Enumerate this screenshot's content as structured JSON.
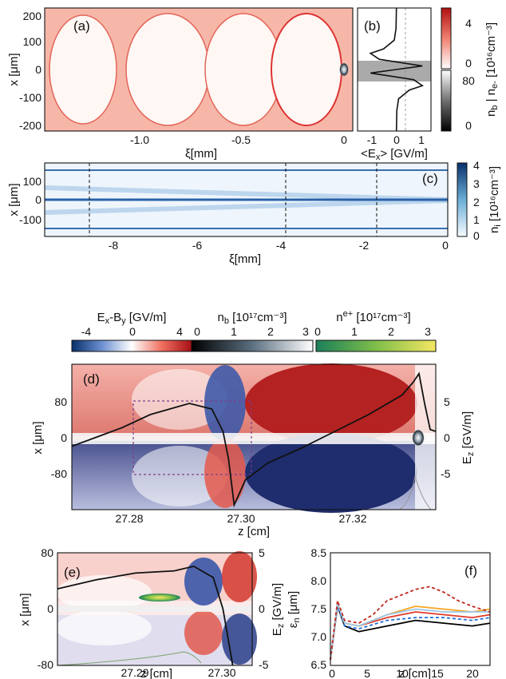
{
  "panel_a": {
    "label": "(a)",
    "xlabel": "ξ[mm]",
    "ylabel": "x [μm]",
    "xticks": [
      "-1.0",
      "-0.5",
      "0"
    ],
    "yticks": [
      "200",
      "100",
      "0",
      "-100",
      "-200"
    ]
  },
  "panel_b": {
    "label": "(b)",
    "xlabel": "<E",
    "xlabel_sub": "x",
    "xlabel_end": "> [GV/m]",
    "xticks": [
      "-1",
      "0",
      "1"
    ]
  },
  "colorbar_ab": {
    "label": "n",
    "label_sub1": "b",
    "label_mid": " | n",
    "label_sub2": "e-",
    "label_end": " [10¹⁶cm⁻³]",
    "upper_ticks": [
      "4",
      "0"
    ],
    "lower_ticks": [
      "80",
      "0"
    ]
  },
  "panel_c": {
    "label": "(c)",
    "xlabel": "ξ[mm]",
    "ylabel": "x [μm]",
    "xticks": [
      "-8",
      "-6",
      "-4",
      "-2",
      "0"
    ],
    "yticks": [
      "100",
      "0",
      "-100"
    ]
  },
  "colorbar_c": {
    "label": "n",
    "label_sub": "i",
    "label_end": " [10¹⁶cm⁻³]",
    "ticks": [
      "4",
      "3",
      "2",
      "1",
      "0"
    ]
  },
  "top_colorbars": [
    {
      "title": "E",
      "title_sub1": "x",
      "title_mid": "-B",
      "title_sub2": "y",
      "title_end": " [GV/m]",
      "ticks": [
        "-4",
        "0",
        "4"
      ]
    },
    {
      "title": "n",
      "title_sub1": "b",
      "title_end": " [10¹⁷cm⁻³]",
      "ticks": [
        "0",
        "1",
        "2",
        "3"
      ]
    },
    {
      "title": "n",
      "title_sub1": "e+",
      "title_end": " [10¹⁷cm⁻³]",
      "ticks": [
        "0",
        "1",
        "2",
        "3"
      ]
    }
  ],
  "panel_d": {
    "label": "(d)",
    "xlabel": "z [cm]",
    "ylabel": "x [μm]",
    "ylabel_right": "E",
    "ylabel_right_sub": "z",
    "ylabel_right_end": " [GV/m]",
    "xticks": [
      "27.28",
      "27.30",
      "27.32"
    ],
    "yticks": [
      "80",
      "0",
      "-80"
    ],
    "yticks_right": [
      "5",
      "0",
      "-5"
    ]
  },
  "panel_e": {
    "label": "(e)",
    "xlabel": "z [cm]",
    "ylabel": "x [μm]",
    "ylabel_right": "E",
    "ylabel_right_sub": "z",
    "ylabel_right_end": " [GV/m]",
    "xticks": [
      "27.29",
      "27.30"
    ],
    "yticks": [
      "80",
      "0",
      "-80"
    ],
    "yticks_right": [
      "5",
      "0",
      "-5"
    ]
  },
  "panel_f": {
    "label": "(f)",
    "xlabel": "z [cm]",
    "ylabel": "ε",
    "ylabel_sub": "n",
    "ylabel_end": " [μm]",
    "xticks": [
      "0",
      "5",
      "10",
      "15",
      "20"
    ],
    "yticks": [
      "8.5",
      "8.0",
      "7.5",
      "7.0",
      "6.5"
    ]
  },
  "chart_data": [
    {
      "type": "line",
      "panel": "b",
      "x_axis": "<Ex> [GV/m]",
      "y_axis": "x [μm]",
      "xlim": [
        -1.8,
        1.6
      ],
      "ylim": [
        -210,
        210
      ],
      "points": [
        [
          0,
          -210
        ],
        [
          0.02,
          -140
        ],
        [
          0.1,
          -100
        ],
        [
          0.6,
          -70
        ],
        [
          1.2,
          -55
        ],
        [
          0.8,
          -35
        ],
        [
          -1.2,
          -12
        ],
        [
          0,
          0
        ],
        [
          1.2,
          12
        ],
        [
          -0.8,
          35
        ],
        [
          -1.2,
          55
        ],
        [
          -0.6,
          70
        ],
        [
          -0.1,
          100
        ],
        [
          -0.02,
          140
        ],
        [
          0,
          210
        ]
      ]
    },
    {
      "type": "line",
      "panel": "d",
      "x_axis": "z [cm]",
      "y_axis": "Ez [GV/m]",
      "xlim": [
        27.271,
        27.336
      ],
      "ylim": [
        -8.4,
        7.2
      ],
      "points": [
        [
          27.271,
          -1.6
        ],
        [
          27.28,
          0.4
        ],
        [
          27.285,
          1.8
        ],
        [
          27.292,
          3.0
        ],
        [
          27.296,
          2.4
        ],
        [
          27.298,
          0.0
        ],
        [
          27.299,
          -3.0
        ],
        [
          27.3,
          -7.9
        ],
        [
          27.302,
          -5.2
        ],
        [
          27.306,
          -3.4
        ],
        [
          27.312,
          -1.8
        ],
        [
          27.318,
          0.0
        ],
        [
          27.324,
          1.8
        ],
        [
          27.33,
          3.9
        ],
        [
          27.332,
          5.3
        ],
        [
          27.333,
          6.2
        ],
        [
          27.334,
          3.0
        ],
        [
          27.335,
          0.2
        ],
        [
          27.336,
          0.0
        ]
      ]
    },
    {
      "type": "line",
      "panel": "e",
      "x_axis": "z [cm]",
      "y_axis": "Ez [GV/m]",
      "xlim": [
        27.282,
        27.302
      ],
      "ylim": [
        -5,
        5
      ],
      "points": [
        [
          27.282,
          1.8
        ],
        [
          27.286,
          2.6
        ],
        [
          27.29,
          3.2
        ],
        [
          27.294,
          3.4
        ],
        [
          27.296,
          3.8
        ],
        [
          27.298,
          2.8
        ],
        [
          27.299,
          0.0
        ],
        [
          27.3,
          -5.0
        ]
      ]
    },
    {
      "type": "line",
      "panel": "f",
      "x_axis": "z [cm]",
      "y_axis": "εn [μm]",
      "xlim": [
        0,
        22.5
      ],
      "ylim": [
        6.5,
        8.5
      ],
      "series": [
        {
          "color": "#000000",
          "style": "solid",
          "values": [
            [
              0,
              6.6
            ],
            [
              1,
              7.55
            ],
            [
              2,
              7.2
            ],
            [
              4,
              7.1
            ],
            [
              8,
              7.2
            ],
            [
              12,
              7.3
            ],
            [
              16,
              7.25
            ],
            [
              20,
              7.2
            ],
            [
              22.5,
              7.25
            ]
          ]
        },
        {
          "color": "#1e6fd9",
          "style": "dashed",
          "values": [
            [
              0,
              6.6
            ],
            [
              1,
              7.55
            ],
            [
              2,
              7.2
            ],
            [
              4,
              7.15
            ],
            [
              8,
              7.3
            ],
            [
              12,
              7.35
            ],
            [
              16,
              7.35
            ],
            [
              20,
              7.3
            ],
            [
              22.5,
              7.35
            ]
          ]
        },
        {
          "color": "#e03a2a",
          "style": "solid",
          "values": [
            [
              0,
              6.6
            ],
            [
              1,
              7.6
            ],
            [
              2,
              7.25
            ],
            [
              4,
              7.2
            ],
            [
              8,
              7.35
            ],
            [
              12,
              7.45
            ],
            [
              16,
              7.4
            ],
            [
              20,
              7.35
            ],
            [
              22.5,
              7.4
            ]
          ]
        },
        {
          "color": "#f5a623",
          "style": "solid",
          "values": [
            [
              0,
              6.6
            ],
            [
              1,
              7.6
            ],
            [
              2,
              7.25
            ],
            [
              4,
              7.2
            ],
            [
              8,
              7.4
            ],
            [
              12,
              7.55
            ],
            [
              16,
              7.5
            ],
            [
              20,
              7.45
            ],
            [
              22.5,
              7.5
            ]
          ]
        },
        {
          "color": "#9bc7e8",
          "style": "solid",
          "values": [
            [
              0,
              6.6
            ],
            [
              1,
              7.6
            ],
            [
              2,
              7.25
            ],
            [
              4,
              7.2
            ],
            [
              8,
              7.4
            ],
            [
              12,
              7.5
            ],
            [
              16,
              7.45
            ],
            [
              20,
              7.45
            ],
            [
              22.5,
              7.45
            ]
          ]
        },
        {
          "color": "#c0281f",
          "style": "dashed",
          "values": [
            [
              0,
              6.6
            ],
            [
              1,
              7.65
            ],
            [
              2,
              7.3
            ],
            [
              4,
              7.25
            ],
            [
              6,
              7.4
            ],
            [
              8,
              7.65
            ],
            [
              10,
              7.75
            ],
            [
              12,
              7.85
            ],
            [
              14,
              7.9
            ],
            [
              16,
              7.8
            ],
            [
              18,
              7.65
            ],
            [
              20,
              7.55
            ],
            [
              22.5,
              7.45
            ]
          ]
        }
      ]
    }
  ]
}
